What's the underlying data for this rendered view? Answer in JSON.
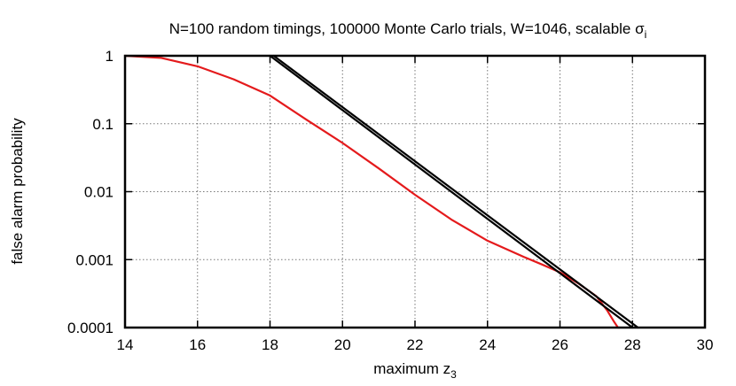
{
  "chart_data": {
    "type": "line",
    "title": "N=100 random timings, 100000 Monte Carlo trials, W=1046, scalable σ",
    "title_subscript": "i",
    "xlabel": "maximum z",
    "xlabel_subscript": "3",
    "ylabel": "false alarm probability",
    "xlim": [
      14,
      30
    ],
    "ylim": [
      0.0001,
      1
    ],
    "yscale": "log",
    "grid": true,
    "x_ticks": [
      "14",
      "16",
      "18",
      "20",
      "22",
      "24",
      "26",
      "28",
      "30"
    ],
    "y_ticks": [
      "0.0001",
      "0.001",
      "0.01",
      "0.1",
      "1"
    ],
    "series": [
      {
        "color": "#e41a1c",
        "x": [
          14.0,
          15.0,
          16.0,
          17.0,
          18.0,
          19.0,
          20.0,
          21.0,
          22.0,
          23.0,
          24.0,
          25.0,
          25.5,
          26.0,
          26.5,
          27.0,
          27.3,
          27.5,
          27.6,
          27.65
        ],
        "y": [
          1.0,
          0.93,
          0.7,
          0.45,
          0.26,
          0.115,
          0.052,
          0.022,
          0.009,
          0.0039,
          0.0019,
          0.0011,
          0.00085,
          0.00065,
          0.00045,
          0.00029,
          0.00018,
          0.00012,
          0.0001,
          0.0001
        ]
      },
      {
        "color": "#000000",
        "x": [
          18.0,
          28.0
        ],
        "y": [
          1.0,
          0.0001
        ]
      },
      {
        "color": "#000000",
        "x": [
          18.1,
          28.15
        ],
        "y": [
          1.0,
          0.0001
        ]
      }
    ]
  }
}
